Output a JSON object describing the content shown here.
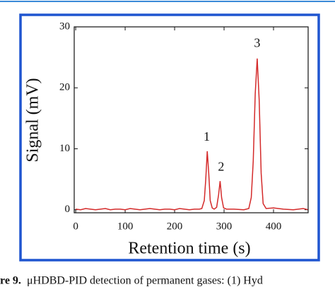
{
  "chart_data": {
    "type": "line",
    "xlabel": "Retention time (s)",
    "ylabel": "Signal (mV)",
    "x": [
      0,
      10,
      20,
      30,
      40,
      50,
      60,
      70,
      80,
      90,
      100,
      110,
      120,
      130,
      140,
      150,
      160,
      170,
      180,
      190,
      200,
      210,
      220,
      230,
      240,
      250,
      255,
      260,
      263,
      266,
      269,
      272,
      276,
      280,
      285,
      289,
      292,
      295,
      299,
      305,
      320,
      340,
      350,
      355,
      359,
      363,
      367,
      371,
      375,
      379,
      385,
      400,
      420,
      440,
      460,
      470
    ],
    "series": [
      {
        "name": "Signal",
        "color": "#d42a2a",
        "values": [
          0.1,
          0.0,
          0.2,
          0.1,
          0.0,
          0.1,
          0.2,
          0.0,
          0.1,
          0.1,
          0.0,
          0.2,
          0.1,
          0.0,
          0.1,
          0.2,
          0.1,
          0.0,
          0.1,
          0.1,
          0.0,
          0.2,
          0.1,
          0.0,
          0.1,
          0.1,
          0.2,
          1.5,
          5,
          9.6,
          6,
          1.5,
          0.3,
          0.1,
          0.4,
          2.5,
          4.7,
          2,
          0.3,
          0.1,
          0.1,
          0.0,
          0.2,
          2,
          8,
          19,
          24.8,
          18,
          6,
          1,
          0.2,
          0.3,
          0.1,
          0.0,
          0.2,
          0.0
        ]
      }
    ],
    "annotations": [
      {
        "text": "1",
        "x": 265,
        "y": 11.8
      },
      {
        "text": "2",
        "x": 294,
        "y": 6.9
      },
      {
        "text": "3",
        "x": 367,
        "y": 27.2
      }
    ],
    "xlim": [
      -3,
      470
    ],
    "ylim": [
      -0.5,
      30
    ],
    "xticks": [
      0,
      100,
      200,
      300,
      400
    ],
    "yticks": [
      0,
      10,
      20,
      30
    ]
  },
  "caption": {
    "label": "re 9.",
    "text": "μHDBD-PID detection of permanent gases: (1) Hyd"
  }
}
